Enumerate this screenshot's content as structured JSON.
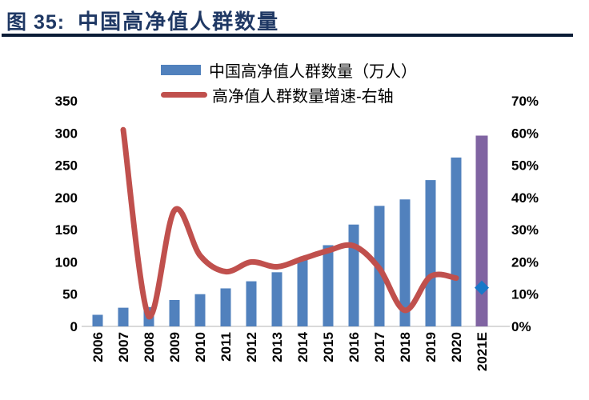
{
  "header": {
    "figure_label": "图 35:",
    "title": "中国高净值人群数量"
  },
  "legend": {
    "items": [
      {
        "label": "中国高净值人群数量（万人）",
        "swatch": "bar"
      },
      {
        "label": "高净值人群数量增速-右轴",
        "swatch": "line"
      }
    ]
  },
  "chart_data": {
    "type": "combo-bar-line",
    "title": "中国高净值人群数量",
    "categories": [
      "2006",
      "2007",
      "2008",
      "2009",
      "2010",
      "2011",
      "2012",
      "2013",
      "2014",
      "2015",
      "2016",
      "2017",
      "2018",
      "2019",
      "2020",
      "2021E"
    ],
    "series": [
      {
        "name": "中国高净值人群数量（万人）",
        "type": "bar",
        "axis": "left",
        "unit": "万人",
        "values": [
          18,
          29,
          30,
          41,
          50,
          59,
          70,
          84,
          104,
          126,
          158,
          187,
          197,
          227,
          262,
          296
        ]
      },
      {
        "name": "高净值人群数量增速-右轴",
        "type": "line",
        "axis": "right",
        "unit": "%",
        "values": [
          null,
          61,
          3,
          36,
          22,
          17,
          20,
          18.5,
          21,
          23.5,
          25,
          18,
          5,
          15.5,
          15,
          null
        ]
      },
      {
        "name": "2021E增速预测点",
        "type": "point",
        "axis": "right",
        "unit": "%",
        "values": [
          null,
          null,
          null,
          null,
          null,
          null,
          null,
          null,
          null,
          null,
          null,
          null,
          null,
          null,
          null,
          12
        ]
      }
    ],
    "forecast_index": 15,
    "left_axis": {
      "min": 0,
      "max": 350,
      "step": 50,
      "tick_labels": [
        "0",
        "50",
        "100",
        "150",
        "200",
        "250",
        "300",
        "350"
      ]
    },
    "right_axis": {
      "min": 0,
      "max": 70,
      "step": 10,
      "tick_labels": [
        "0%",
        "10%",
        "20%",
        "30%",
        "40%",
        "50%",
        "60%",
        "70%"
      ]
    },
    "grid": false,
    "legend_position": "top-center"
  },
  "colors": {
    "bar_blue": "#5181BD",
    "forecast_purple": "#8064A2",
    "line_red": "#C0504D",
    "diamond_blue": "#1878C8",
    "title_navy": "#1F3864",
    "underline_navy": "#0B1C36",
    "axis_line_gray": "#D9D9D9",
    "text_black": "#000000"
  }
}
